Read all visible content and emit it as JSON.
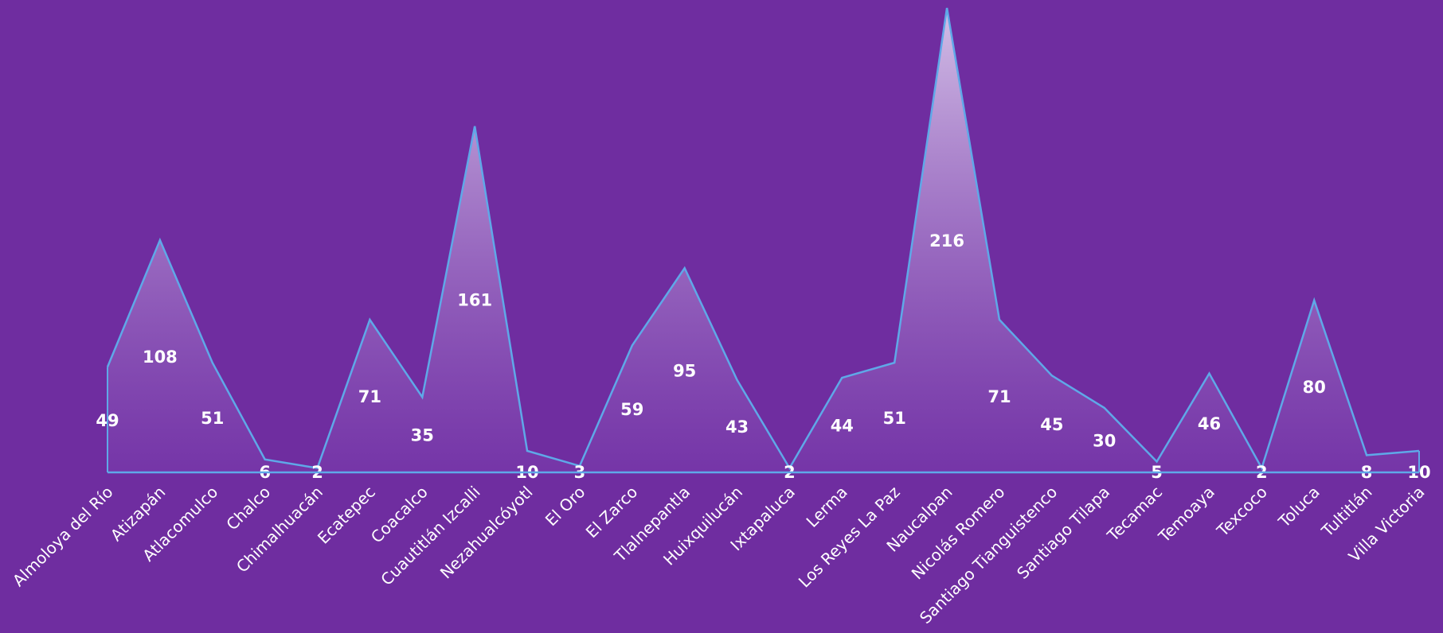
{
  "chart_data": {
    "type": "area",
    "categories": [
      "Almoloya del Río",
      "Atizapán",
      "Atlacomulco",
      "Chalco",
      "Chimalhuacán",
      "Ecatepec",
      "Coacalco",
      "Cuautitlán Izcalli",
      "Nezahualcóyotl",
      "El Oro",
      "El Zarco",
      "Tlalnepantla",
      "Huixquilucán",
      "Ixtapaluca",
      "Lerma",
      "Los Reyes La Paz",
      "Naucalpan",
      "Nicolás Romero",
      "Santiago Tianguistenco",
      "Santiago Tilapa",
      "Tecamac",
      "Temoaya",
      "Texcoco",
      "Toluca",
      "Tultitlán",
      "Villa Victoria"
    ],
    "values": [
      49,
      108,
      51,
      6,
      2,
      71,
      35,
      161,
      10,
      3,
      59,
      95,
      43,
      2,
      44,
      51,
      216,
      71,
      45,
      30,
      5,
      46,
      2,
      80,
      8,
      10
    ],
    "ylim": [
      0,
      216
    ],
    "grid": false,
    "legend": "none",
    "colors": {
      "background": "#6f2da0",
      "line": "#5fa8e8",
      "fill_top": "#d8c6ea",
      "fill_bottom": "#7a3cae",
      "labels": "#ffffff"
    }
  }
}
